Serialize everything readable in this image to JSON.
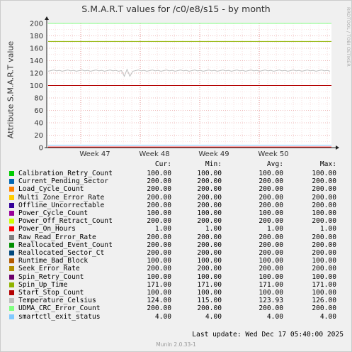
{
  "chart_data": {
    "type": "line",
    "title": "S.M.A.R.T values for /c0/e8/s15 - by month",
    "ylabel": "Attribute S.M.A.R.T value",
    "side_label": "RRDTOOL / TOBI OETIKER",
    "ylim": [
      0,
      200
    ],
    "yticks": [
      0,
      20,
      40,
      60,
      80,
      100,
      120,
      140,
      160,
      180,
      200
    ],
    "xtick_labels": [
      "Week 47",
      "Week 48",
      "Week 49",
      "Week 50"
    ],
    "grid": true,
    "series": [
      {
        "name": "Calibration_Retry_Count",
        "color": "#00cc00",
        "cur": "100.00",
        "min": "100.00",
        "avg": "100.00",
        "max": "100.00",
        "level": 100
      },
      {
        "name": "Current_Pending_Sector",
        "color": "#0066b3",
        "cur": "200.00",
        "min": "200.00",
        "avg": "200.00",
        "max": "200.00",
        "level": 200
      },
      {
        "name": "Load_Cycle_Count",
        "color": "#ff8000",
        "cur": "200.00",
        "min": "200.00",
        "avg": "200.00",
        "max": "200.00",
        "level": 200
      },
      {
        "name": "Multi_Zone_Error_Rate",
        "color": "#ffcc00",
        "cur": "200.00",
        "min": "200.00",
        "avg": "200.00",
        "max": "200.00",
        "level": 200
      },
      {
        "name": "Offline_Uncorrectable",
        "color": "#330099",
        "cur": "200.00",
        "min": "200.00",
        "avg": "200.00",
        "max": "200.00",
        "level": 200
      },
      {
        "name": "Power_Cycle_Count",
        "color": "#990099",
        "cur": "100.00",
        "min": "100.00",
        "avg": "100.00",
        "max": "100.00",
        "level": 100
      },
      {
        "name": "Power_Off_Retract_Count",
        "color": "#ccff00",
        "cur": "200.00",
        "min": "200.00",
        "avg": "200.00",
        "max": "200.00",
        "level": 200
      },
      {
        "name": "Power_On_Hours",
        "color": "#ff0000",
        "cur": "1.00",
        "min": "1.00",
        "avg": "1.00",
        "max": "1.00",
        "level": 1
      },
      {
        "name": "Raw_Read_Error_Rate",
        "color": "#808080",
        "cur": "200.00",
        "min": "200.00",
        "avg": "200.00",
        "max": "200.00",
        "level": 200
      },
      {
        "name": "Reallocated_Event_Count",
        "color": "#008f00",
        "cur": "200.00",
        "min": "200.00",
        "avg": "200.00",
        "max": "200.00",
        "level": 200
      },
      {
        "name": "Reallocated_Sector_Ct",
        "color": "#00487d",
        "cur": "200.00",
        "min": "200.00",
        "avg": "200.00",
        "max": "200.00",
        "level": 200
      },
      {
        "name": "Runtime_Bad_Block",
        "color": "#b35a00",
        "cur": "100.00",
        "min": "100.00",
        "avg": "100.00",
        "max": "100.00",
        "level": 100
      },
      {
        "name": "Seek_Error_Rate",
        "color": "#b38f00",
        "cur": "200.00",
        "min": "200.00",
        "avg": "200.00",
        "max": "200.00",
        "level": 200
      },
      {
        "name": "Spin_Retry_Count",
        "color": "#6b006b",
        "cur": "100.00",
        "min": "100.00",
        "avg": "100.00",
        "max": "100.00",
        "level": 100
      },
      {
        "name": "Spin_Up_Time",
        "color": "#8fb300",
        "cur": "171.00",
        "min": "171.00",
        "avg": "171.00",
        "max": "171.00",
        "level": 171
      },
      {
        "name": "Start_Stop_Count",
        "color": "#b30000",
        "cur": "100.00",
        "min": "100.00",
        "avg": "100.00",
        "max": "100.00",
        "level": 100
      },
      {
        "name": "Temperature_Celsius",
        "color": "#bebebe",
        "cur": "124.00",
        "min": "115.00",
        "avg": "123.93",
        "max": "126.00",
        "level": 124
      },
      {
        "name": "UDMA_CRC_Error_Count",
        "color": "#80ff80",
        "cur": "200.00",
        "min": "200.00",
        "avg": "200.00",
        "max": "200.00",
        "level": 200
      },
      {
        "name": "smartctl_exit_status",
        "color": "#80c9ff",
        "cur": "4.00",
        "min": "4.00",
        "avg": "4.00",
        "max": "4.00",
        "level": 4
      }
    ]
  },
  "legend_headers": {
    "cur": "Cur:",
    "min": "Min:",
    "avg": "Avg:",
    "max": "Max:"
  },
  "last_update": "Last update:  Wed Dec 17 05:40:00 2025",
  "footer": "Munin 2.0.33-1"
}
